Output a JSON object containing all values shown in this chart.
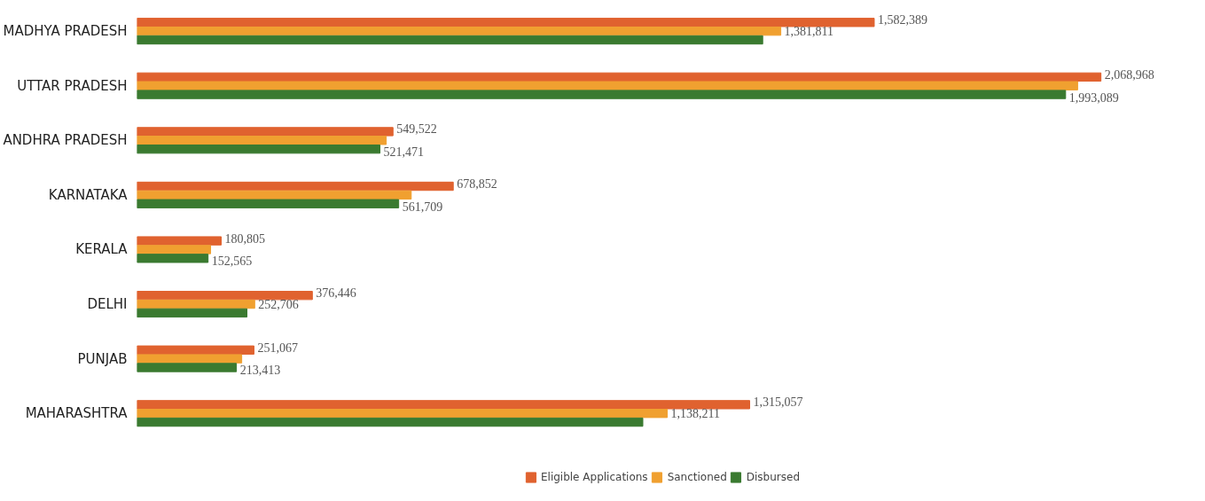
{
  "chart_data": {
    "type": "bar",
    "orientation": "horizontal",
    "categories": [
      "MADHYA PRADESH",
      "UTTAR PRADESH",
      "ANDHRA PRADESH",
      "KARNATAKA",
      "KERALA",
      "DELHI",
      "PUNJAB",
      "MAHARASHTRA"
    ],
    "series": [
      {
        "name": "Eligible Applications",
        "color": "#e0622f",
        "values": [
          1582389,
          2068968,
          549522,
          678852,
          180805,
          376446,
          251067,
          1315057
        ],
        "value_labels": [
          "1,582,389",
          "2,068,968",
          "549,522",
          "678,852",
          "180,805",
          "376,446",
          "251,067",
          "1,315,057"
        ]
      },
      {
        "name": "Sanctioned",
        "color": "#f0a030",
        "values": [
          1381811,
          2019000,
          535000,
          588600,
          158000,
          252706,
          224800,
          1138211
        ],
        "value_labels": [
          "1,381,811",
          null,
          null,
          null,
          null,
          "252,706",
          null,
          "1,138,211"
        ]
      },
      {
        "name": "Disbursed",
        "color": "#3a7a30",
        "values": [
          1343000,
          1993089,
          521471,
          561709,
          152565,
          236000,
          213413,
          1085700
        ],
        "value_labels": [
          null,
          "1,993,089",
          "521,471",
          "561,709",
          "152,565",
          null,
          "213,413",
          null
        ]
      }
    ],
    "legend": "bottom",
    "grid": false
  }
}
